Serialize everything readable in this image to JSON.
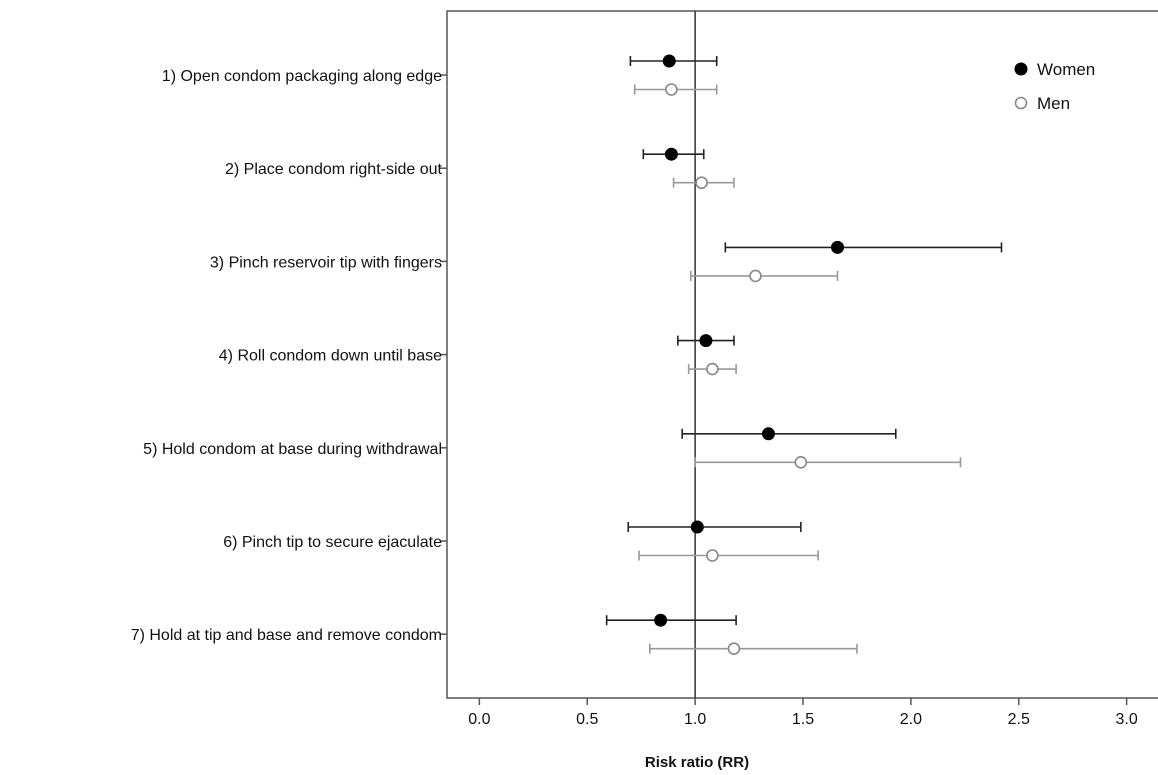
{
  "chart_data": {
    "type": "scatter",
    "subtype": "forest-plot",
    "title": "",
    "xlabel": "Risk ratio (RR)",
    "ylabel": "",
    "xlim": [
      -0.15,
      3.15
    ],
    "xticks": [
      "0.0",
      "0.5",
      "1.0",
      "1.5",
      "2.0",
      "2.5",
      "3.0"
    ],
    "xtick_values": [
      0,
      0.5,
      1,
      1.5,
      2,
      2.5,
      3
    ],
    "reference_line": 1.0,
    "grid": false,
    "legend": {
      "position": "top-right"
    },
    "categories": [
      "1) Open condom packaging along edge",
      "2) Place condom right-side out",
      "3) Pinch reservoir tip with fingers",
      "4) Roll condom down until base",
      "5) Hold condom at base during withdrawal",
      "6) Pinch tip to secure ejaculate",
      "7) Hold at tip and base and remove condom"
    ],
    "series": [
      {
        "name": "Women",
        "marker": "filled-circle",
        "color": "#000000",
        "line_color": "#222222",
        "points": [
          {
            "rr": 0.88,
            "low": 0.7,
            "high": 1.1
          },
          {
            "rr": 0.89,
            "low": 0.76,
            "high": 1.04
          },
          {
            "rr": 1.66,
            "low": 1.14,
            "high": 2.42
          },
          {
            "rr": 1.05,
            "low": 0.92,
            "high": 1.18
          },
          {
            "rr": 1.34,
            "low": 0.94,
            "high": 1.93
          },
          {
            "rr": 1.01,
            "low": 0.69,
            "high": 1.49
          },
          {
            "rr": 0.84,
            "low": 0.59,
            "high": 1.19
          }
        ]
      },
      {
        "name": "Men",
        "marker": "open-circle",
        "color": "#888888",
        "line_color": "#999999",
        "points": [
          {
            "rr": 0.89,
            "low": 0.72,
            "high": 1.1
          },
          {
            "rr": 1.03,
            "low": 0.9,
            "high": 1.18
          },
          {
            "rr": 1.28,
            "low": 0.98,
            "high": 1.66
          },
          {
            "rr": 1.08,
            "low": 0.97,
            "high": 1.19
          },
          {
            "rr": 1.49,
            "low": 1.0,
            "high": 2.23
          },
          {
            "rr": 1.08,
            "low": 0.74,
            "high": 1.57
          },
          {
            "rr": 1.18,
            "low": 0.79,
            "high": 1.75
          }
        ]
      }
    ]
  }
}
